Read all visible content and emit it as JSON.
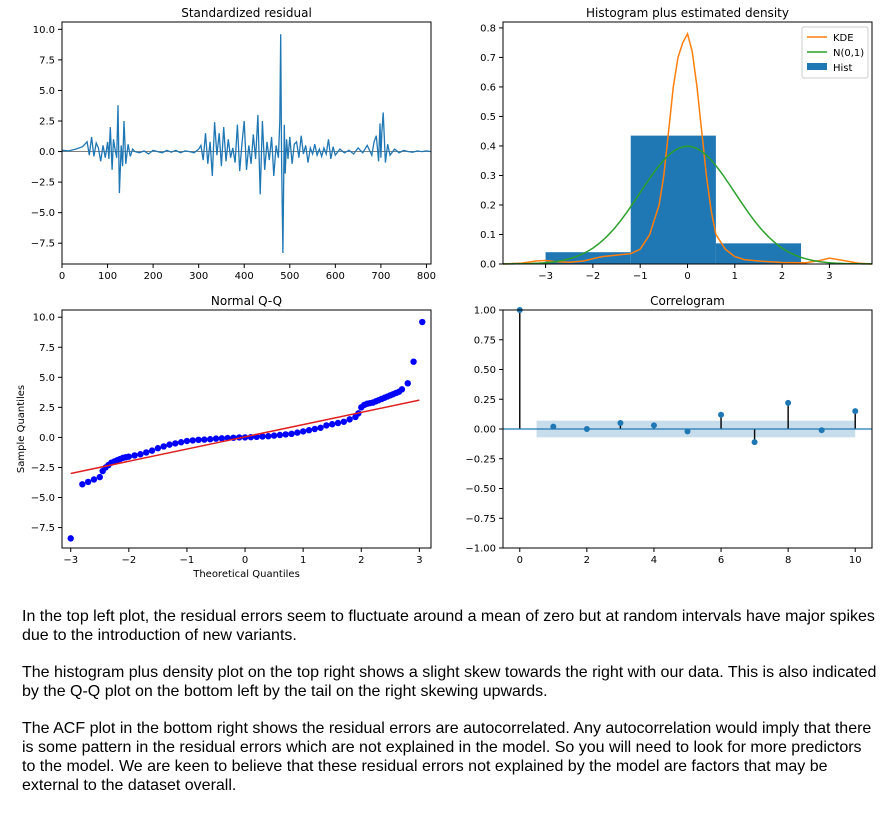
{
  "chart_data": [
    {
      "type": "line",
      "title": "Standardized residual",
      "xlim": [
        0,
        810
      ],
      "ylim": [
        -9.2,
        10.6
      ],
      "xticks": [
        0,
        100,
        200,
        300,
        400,
        500,
        600,
        700,
        800
      ],
      "yticks": [
        -7.5,
        -5.0,
        -2.5,
        0.0,
        2.5,
        5.0,
        7.5,
        10.0
      ],
      "reference_line": 0,
      "series": [
        {
          "color": "#1f77b4",
          "x": [
            0,
            15,
            30,
            45,
            55,
            60,
            65,
            70,
            75,
            80,
            85,
            90,
            95,
            100,
            103,
            106,
            110,
            113,
            116,
            120,
            123,
            126,
            130,
            133,
            136,
            140,
            145,
            150,
            155,
            160,
            170,
            180,
            190,
            200,
            210,
            220,
            230,
            240,
            250,
            260,
            270,
            280,
            290,
            300,
            305,
            310,
            315,
            320,
            325,
            330,
            335,
            340,
            345,
            350,
            355,
            360,
            365,
            370,
            375,
            380,
            385,
            390,
            395,
            400,
            405,
            410,
            415,
            420,
            425,
            430,
            435,
            440,
            445,
            450,
            455,
            460,
            465,
            470,
            475,
            478,
            480,
            482,
            485,
            488,
            490,
            493,
            496,
            500,
            505,
            510,
            515,
            520,
            525,
            530,
            535,
            540,
            545,
            550,
            555,
            560,
            565,
            570,
            575,
            580,
            585,
            590,
            595,
            600,
            610,
            620,
            630,
            640,
            650,
            660,
            670,
            680,
            685,
            690,
            695,
            698,
            700,
            702,
            705,
            710,
            715,
            720,
            730,
            740,
            750,
            760,
            770,
            780,
            790,
            800,
            810
          ],
          "values": [
            0.1,
            0.05,
            0.2,
            0.4,
            0.8,
            -0.3,
            1.2,
            -0.4,
            0.7,
            0.3,
            -0.8,
            0.5,
            -0.5,
            0.8,
            -0.6,
            2.0,
            -1.5,
            1.0,
            0.3,
            -0.5,
            3.8,
            -3.4,
            0.5,
            -1.2,
            2.5,
            -1.0,
            0.6,
            -0.4,
            0.2,
            0.0,
            -0.1,
            0.05,
            -0.2,
            0.1,
            0.0,
            -0.1,
            0.1,
            -0.05,
            0.1,
            -0.1,
            0.05,
            0.0,
            -0.1,
            0.2,
            0.5,
            -0.7,
            1.5,
            -1.0,
            0.8,
            -2.0,
            2.4,
            -0.3,
            1.5,
            -1.2,
            2.0,
            -0.8,
            1.0,
            -0.5,
            0.3,
            -0.9,
            2.2,
            -1.6,
            0.6,
            2.5,
            -1.5,
            0.5,
            -1.0,
            1.4,
            -0.6,
            3.0,
            -3.5,
            2.5,
            -1.5,
            0.8,
            -0.7,
            1.2,
            -2.0,
            0.5,
            -0.5,
            2.5,
            9.6,
            -0.8,
            -8.3,
            2.2,
            -1.8,
            1.0,
            -0.6,
            1.2,
            -1.0,
            0.6,
            0.8,
            -0.5,
            1.3,
            -0.2,
            0.5,
            -0.9,
            0.3,
            -0.2,
            0.6,
            -0.3,
            0.2,
            -0.4,
            0.3,
            -0.2,
            1.0,
            -0.6,
            0.4,
            -0.3,
            0.2,
            -0.1,
            0.1,
            -0.2,
            0.3,
            -0.1,
            0.5,
            -0.3,
            0.8,
            1.3,
            -0.8,
            2.3,
            -0.5,
            1.5,
            3.2,
            -0.9,
            0.6,
            -0.3,
            0.2,
            -0.1,
            0.1,
            0.0,
            -0.05,
            0.05,
            0.0,
            0.05,
            0.0
          ]
        }
      ]
    },
    {
      "type": "bar",
      "title": "Histogram plus estimated density",
      "xlim": [
        -3.9,
        3.9
      ],
      "ylim": [
        0,
        0.82
      ],
      "xticks": [
        -3,
        -2,
        -1,
        0,
        1,
        2,
        3
      ],
      "yticks": [
        0.0,
        0.1,
        0.2,
        0.3,
        0.4,
        0.5,
        0.6,
        0.7,
        0.8
      ],
      "legend_position": "top-right",
      "bins": [
        {
          "from": -3.0,
          "to": -1.2,
          "value": 0.04
        },
        {
          "from": -1.2,
          "to": 0.6,
          "value": 0.435
        },
        {
          "from": 0.6,
          "to": 2.4,
          "value": 0.07
        }
      ],
      "series": [
        {
          "name": "KDE",
          "color": "#ff7f0e",
          "x": [
            -3.9,
            -3.5,
            -3.2,
            -3.0,
            -2.8,
            -2.5,
            -2.2,
            -2.0,
            -1.8,
            -1.5,
            -1.2,
            -1.0,
            -0.8,
            -0.6,
            -0.5,
            -0.4,
            -0.3,
            -0.2,
            -0.1,
            0.0,
            0.1,
            0.2,
            0.3,
            0.4,
            0.5,
            0.6,
            0.8,
            1.0,
            1.2,
            1.5,
            2.0,
            2.5,
            2.8,
            3.0,
            3.3,
            3.6,
            3.9
          ],
          "values": [
            0.0,
            0.003,
            0.01,
            0.012,
            0.008,
            0.006,
            0.01,
            0.018,
            0.025,
            0.03,
            0.035,
            0.05,
            0.1,
            0.2,
            0.3,
            0.45,
            0.6,
            0.7,
            0.75,
            0.78,
            0.72,
            0.6,
            0.45,
            0.3,
            0.18,
            0.1,
            0.05,
            0.025,
            0.015,
            0.01,
            0.005,
            0.004,
            0.012,
            0.02,
            0.012,
            0.003,
            0.0
          ]
        },
        {
          "name": "N(0,1)",
          "color": "#2ca02c",
          "type": "normal_pdf",
          "mean": 0,
          "sd": 1
        },
        {
          "name": "Hist",
          "color": "#1f77b4"
        }
      ]
    },
    {
      "type": "scatter",
      "title": "Normal Q-Q",
      "xlabel": "Theoretical Quantiles",
      "ylabel": "Sample Quantiles",
      "xlim": [
        -3.15,
        3.2
      ],
      "ylim": [
        -9.2,
        10.6
      ],
      "xticks": [
        -3,
        -2,
        -1,
        0,
        1,
        2,
        3
      ],
      "yticks": [
        -7.5,
        -5.0,
        -2.5,
        0.0,
        2.5,
        5.0,
        7.5,
        10.0
      ],
      "fit_line": {
        "x": [
          -3.0,
          3.0
        ],
        "y": [
          -3.0,
          3.1
        ],
        "color": "#e02020"
      },
      "series": [
        {
          "color": "#0000ff",
          "x": [
            -3.0,
            -2.8,
            -2.7,
            -2.6,
            -2.5,
            -2.45,
            -2.4,
            -2.35,
            -2.3,
            -2.25,
            -2.2,
            -2.15,
            -2.1,
            -2.05,
            -2.0,
            -1.9,
            -1.8,
            -1.7,
            -1.6,
            -1.5,
            -1.4,
            -1.3,
            -1.2,
            -1.1,
            -1.0,
            -0.9,
            -0.8,
            -0.7,
            -0.6,
            -0.5,
            -0.4,
            -0.3,
            -0.2,
            -0.1,
            0.0,
            0.1,
            0.2,
            0.3,
            0.4,
            0.5,
            0.6,
            0.7,
            0.8,
            0.9,
            1.0,
            1.1,
            1.2,
            1.3,
            1.4,
            1.5,
            1.6,
            1.7,
            1.8,
            1.9,
            1.95,
            2.0,
            2.05,
            2.1,
            2.15,
            2.2,
            2.25,
            2.3,
            2.35,
            2.4,
            2.45,
            2.5,
            2.55,
            2.6,
            2.65,
            2.7,
            2.8,
            2.9,
            3.05
          ],
          "values": [
            -8.4,
            -3.9,
            -3.7,
            -3.5,
            -3.3,
            -2.8,
            -2.5,
            -2.3,
            -2.1,
            -2.0,
            -1.9,
            -1.8,
            -1.7,
            -1.65,
            -1.6,
            -1.5,
            -1.4,
            -1.25,
            -1.1,
            -0.9,
            -0.75,
            -0.6,
            -0.5,
            -0.4,
            -0.3,
            -0.25,
            -0.2,
            -0.18,
            -0.15,
            -0.1,
            -0.08,
            -0.05,
            -0.03,
            0.0,
            0.0,
            0.02,
            0.05,
            0.08,
            0.1,
            0.15,
            0.2,
            0.25,
            0.3,
            0.4,
            0.5,
            0.6,
            0.7,
            0.8,
            1.0,
            1.1,
            1.2,
            1.3,
            1.5,
            1.7,
            2.0,
            2.5,
            2.7,
            2.8,
            2.85,
            2.9,
            3.0,
            3.1,
            3.2,
            3.3,
            3.4,
            3.5,
            3.6,
            3.7,
            3.8,
            4.0,
            4.5,
            6.3,
            9.6
          ]
        }
      ]
    },
    {
      "type": "bar",
      "title": "Correlogram",
      "xlim": [
        -0.5,
        10.5
      ],
      "ylim": [
        -1.0,
        1.0
      ],
      "xticks": [
        0,
        2,
        4,
        6,
        8,
        10
      ],
      "yticks": [
        -1.0,
        -0.75,
        -0.5,
        -0.25,
        0.0,
        0.25,
        0.5,
        0.75,
        1.0
      ],
      "confidence_band": 0.07,
      "series": [
        {
          "color": "#1f77b4",
          "x": [
            0,
            1,
            2,
            3,
            4,
            5,
            6,
            7,
            8,
            9,
            10
          ],
          "values": [
            1.0,
            0.02,
            0.0,
            0.05,
            0.03,
            -0.02,
            0.12,
            -0.11,
            0.22,
            -0.01,
            0.15
          ]
        }
      ]
    }
  ],
  "paragraphs": [
    "In the top left plot, the residual errors seem to fluctuate around a mean of zero but at random intervals have major spikes due to the introduction of new variants.",
    "The histogram plus density plot on the top right shows a slight skew towards the right with our data. This is also indicated by the Q-Q plot on the bottom left by the tail on the right skewing upwards.",
    "The ACF plot in the bottom right shows the residual errors are autocorrelated. Any autocorrelation would imply that there is some pattern in the residual errors which are not explained in the model. So you will need to look for more predictors to the model. We are keen to believe that these residual errors not explained by the model are factors that may be external to the dataset overall."
  ]
}
